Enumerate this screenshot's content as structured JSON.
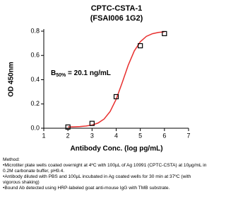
{
  "chart_data": {
    "type": "line",
    "title": "CPTC-CSTA-1",
    "subtitle": "(FSAI006 1G2)",
    "x_label": "Antibody Conc. (log pg/mL)",
    "y_label": "OD 450nm",
    "annotation": {
      "main": "B",
      "subscript": "50%",
      "rest": " = 20.1 ng/mL"
    },
    "xlim": [
      1,
      7
    ],
    "xticks": [
      1,
      2,
      3,
      4,
      5,
      6,
      7
    ],
    "ylim": [
      0,
      0.8
    ],
    "yticks": [
      {
        "value": 0,
        "label": "0.0"
      },
      0.2,
      0.4,
      0.6,
      0.8
    ],
    "series": [
      {
        "color": "#e8302f",
        "style": "curve",
        "x": [
          2,
          2.25,
          2.5,
          2.75,
          3,
          3.25,
          3.5,
          3.75,
          4,
          4.25,
          4.5,
          4.75,
          5,
          5.25,
          5.5,
          5.75,
          6
        ],
        "values": [
          0.011,
          0.012,
          0.014,
          0.018,
          0.026,
          0.043,
          0.076,
          0.138,
          0.239,
          0.376,
          0.52,
          0.637,
          0.713,
          0.757,
          0.779,
          0.79,
          0.795
        ]
      },
      {
        "color": "#000000",
        "style": "markers",
        "x": [
          2,
          3,
          4,
          5,
          6
        ],
        "values": [
          0.01,
          0.04,
          0.26,
          0.68,
          0.78
        ]
      }
    ]
  },
  "method": {
    "title": "Method:",
    "items": [
      "Microtiter plate wells coated overnight at 4ºC  with 100µL of Ag 10991 (CPTC-CSTA) at 10µg/mL in 0.2M carbonate buffer, pH9.4.",
      "Antibody diluted with PBS and 100µL incubated in Ag coated wells for 30 min at 37ºC (with vigorous shaking)",
      "Bound Ab detected using HRP-labeled goat anti-mouse IgG with TMB substrate."
    ]
  }
}
